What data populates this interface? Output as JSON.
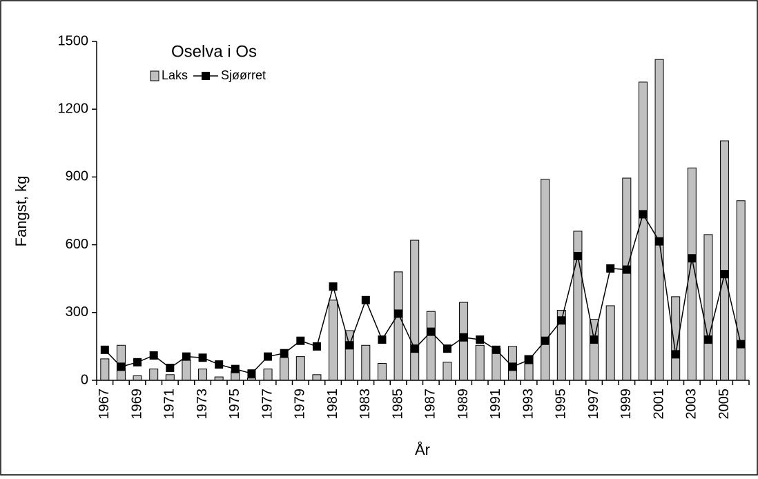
{
  "chart_data": {
    "type": "bar",
    "title": "Oselva i Os",
    "y_label": "Fangst, kg",
    "x_label": "År",
    "categories": [
      "1967",
      null,
      "1969",
      null,
      "1971",
      null,
      "1973",
      null,
      "1975",
      null,
      "1977",
      null,
      "1979",
      null,
      "1981",
      null,
      "1983",
      null,
      "1985",
      null,
      "1987",
      null,
      "1989",
      null,
      "1991",
      null,
      "1993",
      null,
      "1995",
      null,
      "1997",
      null,
      "1999",
      null,
      "2001",
      null,
      "2003",
      null,
      "2005",
      null
    ],
    "series": [
      {
        "name": "Laks",
        "type": "bar",
        "color": "#c0c0c0",
        "values": [
          95,
          155,
          20,
          50,
          25,
          90,
          50,
          15,
          40,
          10,
          50,
          100,
          105,
          25,
          355,
          220,
          155,
          75,
          480,
          620,
          305,
          80,
          345,
          155,
          140,
          150,
          110,
          890,
          310,
          660,
          270,
          330,
          895,
          1320,
          1420,
          370,
          940,
          645,
          1060,
          795
        ]
      },
      {
        "name": "Sjøørret",
        "type": "line",
        "color": "#000000",
        "values": [
          135,
          60,
          80,
          110,
          55,
          105,
          100,
          70,
          50,
          30,
          105,
          120,
          175,
          150,
          415,
          155,
          355,
          180,
          295,
          140,
          215,
          140,
          190,
          180,
          135,
          60,
          90,
          175,
          265,
          550,
          180,
          495,
          490,
          735,
          615,
          115,
          540,
          180,
          470,
          160
        ]
      }
    ],
    "ylim": [
      0,
      1500
    ],
    "yticks": [
      0,
      300,
      600,
      900,
      1200,
      1500
    ],
    "grid": false,
    "legend": "top-left"
  }
}
